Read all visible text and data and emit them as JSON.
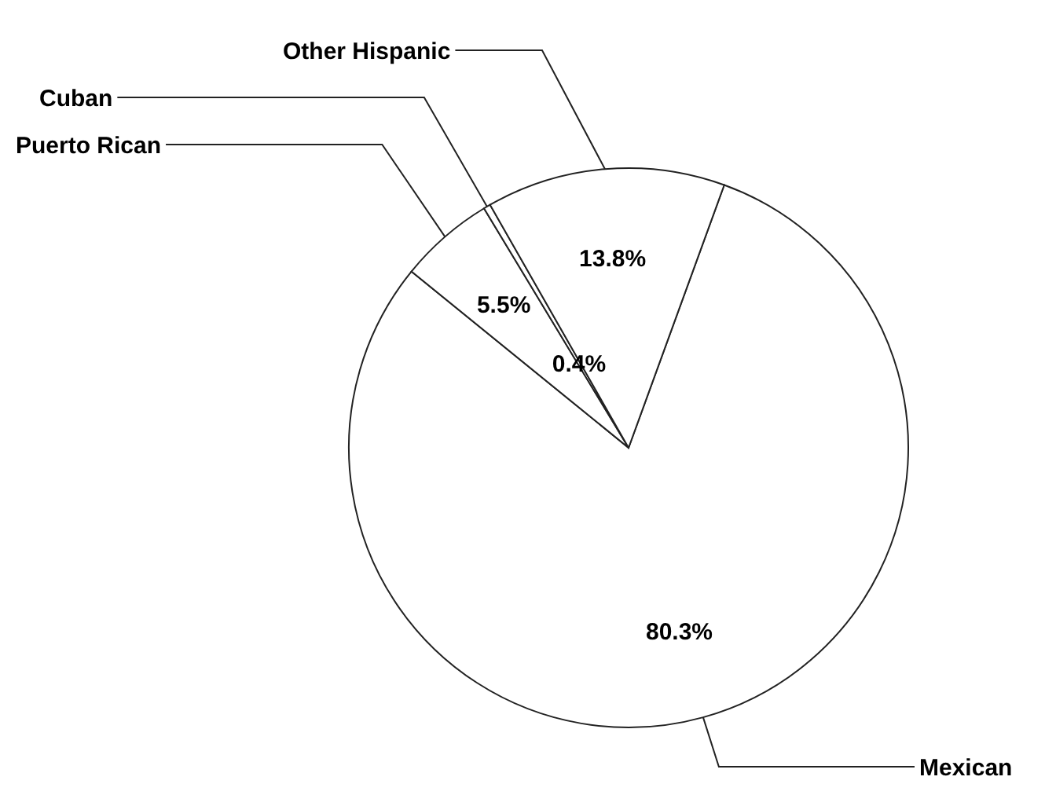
{
  "chart_data": {
    "type": "pie",
    "categories": [
      "Mexican",
      "Puerto Rican",
      "Cuban",
      "Other Hispanic"
    ],
    "values": [
      80.3,
      5.5,
      0.4,
      13.8
    ],
    "colors": [
      "#ffffff",
      "#ffffff",
      "#ffffff",
      "#ffffff"
    ],
    "value_labels": [
      "80.3%",
      "5.5%",
      "0.4%",
      "13.8%"
    ],
    "legend": false
  }
}
